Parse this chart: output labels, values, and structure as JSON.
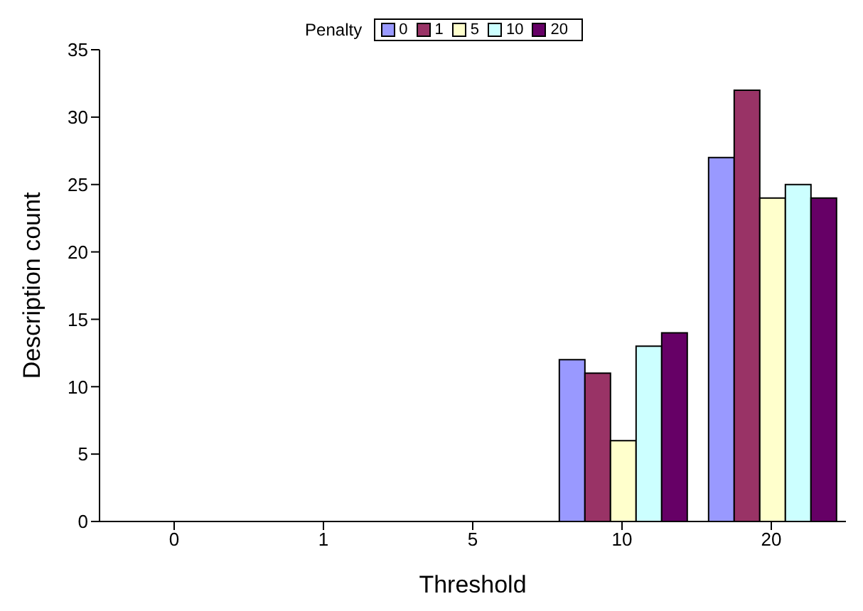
{
  "chart_data": {
    "type": "bar",
    "xlabel": "Threshold",
    "ylabel": "Description count",
    "legend_title": "Penalty",
    "categories": [
      "0",
      "1",
      "5",
      "10",
      "20"
    ],
    "series": [
      {
        "name": "0",
        "color": "#9999ff",
        "values": [
          0,
          0,
          0,
          12,
          27
        ]
      },
      {
        "name": "1",
        "color": "#993366",
        "values": [
          0,
          0,
          0,
          11,
          32
        ]
      },
      {
        "name": "5",
        "color": "#ffffcc",
        "values": [
          0,
          0,
          0,
          6,
          24
        ]
      },
      {
        "name": "10",
        "color": "#ccffff",
        "values": [
          0,
          0,
          0,
          13,
          25
        ]
      },
      {
        "name": "20",
        "color": "#660066",
        "values": [
          0,
          0,
          0,
          14,
          24
        ]
      }
    ],
    "ylim": [
      0,
      35
    ],
    "yticks": [
      0,
      5,
      10,
      15,
      20,
      25,
      30,
      35
    ],
    "grid": false,
    "legend": "top"
  }
}
